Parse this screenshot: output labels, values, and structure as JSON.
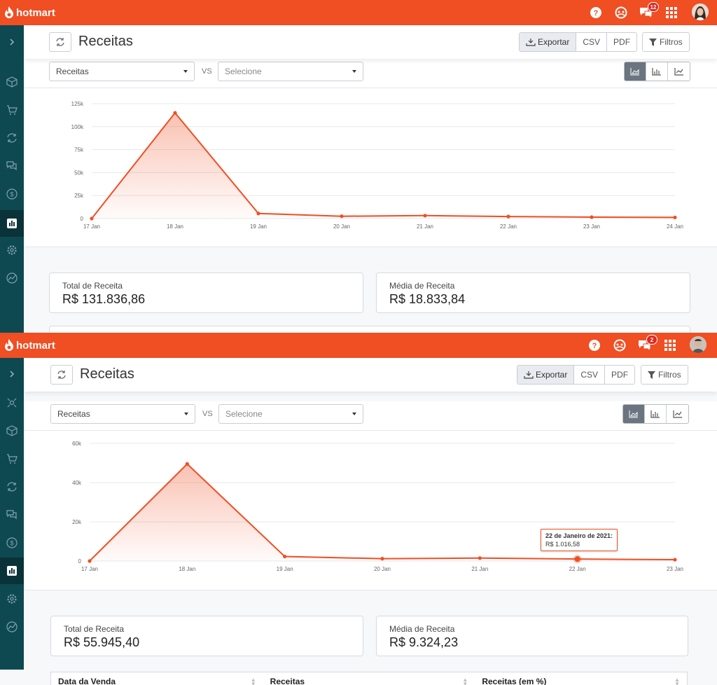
{
  "brand": {
    "name": "hotmart",
    "color": "#f04e23"
  },
  "icons": {
    "topbar": [
      "help-icon",
      "community-icon",
      "chat-icon",
      "apps-grid-icon",
      "avatar"
    ],
    "sidebar": [
      "chevron-right-icon",
      "affiliate-icon",
      "box-icon",
      "cart-icon",
      "recurrence-icon",
      "message-icon",
      "dollar-icon",
      "chart-icon",
      "gear-icon",
      "analytics-icon"
    ]
  },
  "panels": [
    {
      "notifications_count": "12",
      "page_title": "Receitas",
      "toolbar": {
        "export": "Exportar",
        "csv": "CSV",
        "pdf": "PDF",
        "filters": "Filtros"
      },
      "metric_select": "Receitas",
      "vs": "VS",
      "compare_select": "Selecione",
      "cards": [
        {
          "label": "Total de Receita",
          "value": "R$ 131.836,86"
        },
        {
          "label": "Média de Receita",
          "value": "R$ 18.833,84"
        }
      ],
      "chart_data": {
        "type": "area",
        "x": [
          "17 Jan",
          "18 Jan",
          "19 Jan",
          "20 Jan",
          "21 Jan",
          "22 Jan",
          "23 Jan",
          "24 Jan"
        ],
        "series": [
          {
            "values": [
              0,
              115000,
              5500,
              2500,
              3200,
              2200,
              1500,
              1200
            ]
          }
        ],
        "y_ticks": [
          "0",
          "25k",
          "50k",
          "75k",
          "100k",
          "125k"
        ],
        "ylim": [
          0,
          125000
        ],
        "grid": true,
        "color": "#f04e23"
      }
    },
    {
      "notifications_count": "2",
      "page_title": "Receitas",
      "toolbar": {
        "export": "Exportar",
        "csv": "CSV",
        "pdf": "PDF",
        "filters": "Filtros"
      },
      "metric_select": "Receitas",
      "vs": "VS",
      "compare_select": "Selecione",
      "cards": [
        {
          "label": "Total de Receita",
          "value": "R$ 55.945,40"
        },
        {
          "label": "Média de Receita",
          "value": "R$ 9.324,23"
        }
      ],
      "tooltip": {
        "title": "22 de Janeiro de 2021:",
        "value": "R$ 1.016,58"
      },
      "table_headers": [
        "Data da Venda",
        "Receitas",
        "Receitas (em %)"
      ],
      "chart_data": {
        "type": "area",
        "x": [
          "17 Jan",
          "18 Jan",
          "19 Jan",
          "20 Jan",
          "21 Jan",
          "22 Jan",
          "23 Jan"
        ],
        "series": [
          {
            "values": [
              0,
              49500,
              2300,
              1200,
              1500,
              1016.58,
              700
            ]
          }
        ],
        "y_ticks": [
          "0",
          "20k",
          "40k",
          "60k"
        ],
        "ylim": [
          0,
          60000
        ],
        "grid": true,
        "highlight_index": 5,
        "color": "#f04e23"
      }
    }
  ]
}
